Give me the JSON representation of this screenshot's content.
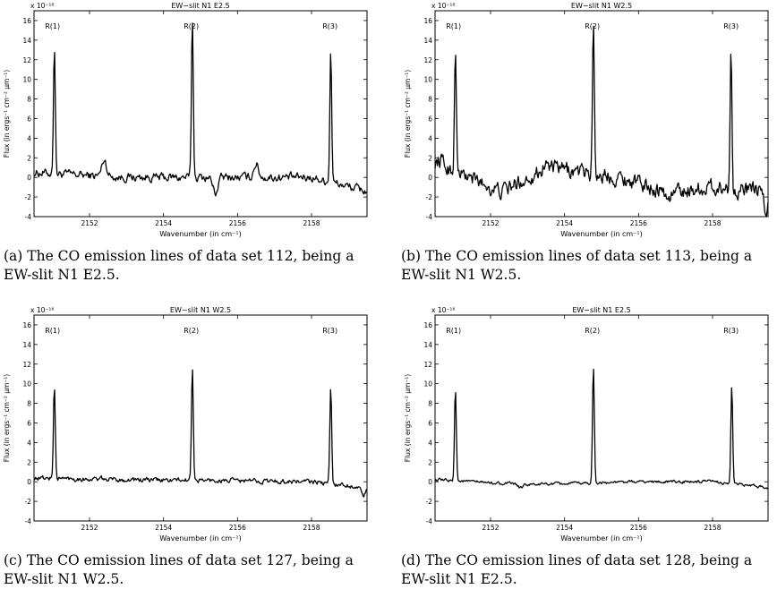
{
  "chart_data": [
    {
      "type": "line",
      "panel": "a",
      "title": "EW−slit N1 E2.5",
      "xlabel": "Wavenumber (in cm⁻¹)",
      "ylabel": "Flux (in ergs⁻¹ cm⁻² μm⁻¹)",
      "y_multiplier": "x 10⁻¹⁶",
      "xlim": [
        2150.5,
        2159.5
      ],
      "ylim": [
        -4,
        17
      ],
      "xticks": [
        2152,
        2154,
        2156,
        2158
      ],
      "yticks": [
        -4,
        -2,
        0,
        2,
        4,
        6,
        8,
        10,
        12,
        14,
        16
      ],
      "peak_labels": [
        {
          "text": "R(1)",
          "x": 2151.0
        },
        {
          "text": "R(2)",
          "x": 2154.75
        },
        {
          "text": "R(3)",
          "x": 2158.5
        }
      ],
      "series": [
        {
          "peaks": [
            {
              "x": 2151.05,
              "y": 13.5
            },
            {
              "x": 2154.78,
              "y": 16.3
            },
            {
              "x": 2158.52,
              "y": 13.2
            }
          ],
          "bumps": [
            {
              "x": 2152.4,
              "y": 1.8
            },
            {
              "x": 2156.5,
              "y": 1.4
            },
            {
              "x": 2155.4,
              "y": -1.6
            }
          ],
          "baseline": [
            {
              "x": 2150.5,
              "y": 0.5
            },
            {
              "x": 2153.0,
              "y": 0.0
            },
            {
              "x": 2156.0,
              "y": 0.0
            },
            {
              "x": 2158.0,
              "y": 0.0
            },
            {
              "x": 2159.5,
              "y": -1.4
            }
          ],
          "noise": 0.35
        }
      ]
    },
    {
      "type": "line",
      "panel": "b",
      "title": "EW−slit N1 W2.5",
      "xlabel": "Wavenumber (in cm⁻¹)",
      "ylabel": "Flux (in ergs⁻¹ cm⁻² μm⁻¹)",
      "y_multiplier": "x 10⁻¹⁶",
      "xlim": [
        2150.5,
        2159.5
      ],
      "ylim": [
        -4,
        17
      ],
      "xticks": [
        2152,
        2154,
        2156,
        2158
      ],
      "yticks": [
        -4,
        -2,
        0,
        2,
        4,
        6,
        8,
        10,
        12,
        14,
        16
      ],
      "peak_labels": [
        {
          "text": "R(1)",
          "x": 2151.0
        },
        {
          "text": "R(2)",
          "x": 2154.75
        },
        {
          "text": "R(3)",
          "x": 2158.5
        }
      ],
      "series": [
        {
          "peaks": [
            {
              "x": 2151.05,
              "y": 13.5
            },
            {
              "x": 2154.78,
              "y": 16.1
            },
            {
              "x": 2158.5,
              "y": 12.6
            }
          ],
          "bumps": [
            {
              "x": 2150.65,
              "y": 1.8
            },
            {
              "x": 2153.5,
              "y": 1.5
            },
            {
              "x": 2156.8,
              "y": -2.3
            },
            {
              "x": 2159.45,
              "y": -3.5
            }
          ],
          "baseline": [
            {
              "x": 2150.5,
              "y": 1.5
            },
            {
              "x": 2152.3,
              "y": -1.5
            },
            {
              "x": 2153.5,
              "y": 1.0
            },
            {
              "x": 2155.5,
              "y": 0.0
            },
            {
              "x": 2156.8,
              "y": -1.5
            },
            {
              "x": 2158.0,
              "y": -1.0
            },
            {
              "x": 2159.5,
              "y": -1.5
            }
          ],
          "noise": 0.65
        }
      ]
    },
    {
      "type": "line",
      "panel": "c",
      "title": "EW−slit N1 W2.5",
      "xlabel": "Wavenumber (in cm⁻¹)",
      "ylabel": "Flux (in ergs⁻¹ cm⁻² μm⁻¹)",
      "y_multiplier": "x 10⁻¹⁶",
      "xlim": [
        2150.5,
        2159.5
      ],
      "ylim": [
        -4,
        17
      ],
      "xticks": [
        2152,
        2154,
        2156,
        2158
      ],
      "yticks": [
        -4,
        -2,
        0,
        2,
        4,
        6,
        8,
        10,
        12,
        14,
        16
      ],
      "peak_labels": [
        {
          "text": "R(1)",
          "x": 2151.0
        },
        {
          "text": "R(2)",
          "x": 2154.75
        },
        {
          "text": "R(3)",
          "x": 2158.5
        }
      ],
      "series": [
        {
          "peaks": [
            {
              "x": 2151.05,
              "y": 9.8
            },
            {
              "x": 2154.78,
              "y": 11.8
            },
            {
              "x": 2158.52,
              "y": 9.6
            }
          ],
          "bumps": [
            {
              "x": 2159.4,
              "y": -1.4
            }
          ],
          "baseline": [
            {
              "x": 2150.5,
              "y": 0.4
            },
            {
              "x": 2153.0,
              "y": 0.2
            },
            {
              "x": 2156.0,
              "y": 0.1
            },
            {
              "x": 2158.0,
              "y": 0.0
            },
            {
              "x": 2159.5,
              "y": -0.6
            }
          ],
          "noise": 0.2
        }
      ]
    },
    {
      "type": "line",
      "panel": "d",
      "title": "EW−slit N1 E2.5",
      "xlabel": "Wavenumber (in cm⁻¹)",
      "ylabel": "Flux (in ergs⁻¹ cm⁻² μm⁻¹)",
      "y_multiplier": "x 10⁻¹⁶",
      "xlim": [
        2150.5,
        2159.5
      ],
      "ylim": [
        -4,
        17
      ],
      "xticks": [
        2152,
        2154,
        2156,
        2158
      ],
      "yticks": [
        -4,
        -2,
        0,
        2,
        4,
        6,
        8,
        10,
        12,
        14,
        16
      ],
      "peak_labels": [
        {
          "text": "R(1)",
          "x": 2151.0
        },
        {
          "text": "R(2)",
          "x": 2154.75
        },
        {
          "text": "R(3)",
          "x": 2158.5
        }
      ],
      "series": [
        {
          "peaks": [
            {
              "x": 2151.05,
              "y": 9.6
            },
            {
              "x": 2154.78,
              "y": 11.7
            },
            {
              "x": 2158.52,
              "y": 9.8
            }
          ],
          "bumps": [
            {
              "x": 2152.8,
              "y": -0.6
            }
          ],
          "baseline": [
            {
              "x": 2150.5,
              "y": 0.2
            },
            {
              "x": 2153.0,
              "y": -0.3
            },
            {
              "x": 2156.0,
              "y": 0.0
            },
            {
              "x": 2158.0,
              "y": 0.0
            },
            {
              "x": 2159.5,
              "y": -0.6
            }
          ],
          "noise": 0.12
        }
      ]
    }
  ],
  "captions": {
    "a": "(a) The CO emission lines of data set 112, being a EW-slit N1 E2.5.",
    "b": "(b) The CO emission lines of data set 113, being a EW-slit N1 W2.5.",
    "c": "(c) The CO emission lines of data set 127, being a EW-slit N1 W2.5.",
    "d": "(d) The CO emission lines of data set 128, being a EW-slit N1 E2.5."
  }
}
